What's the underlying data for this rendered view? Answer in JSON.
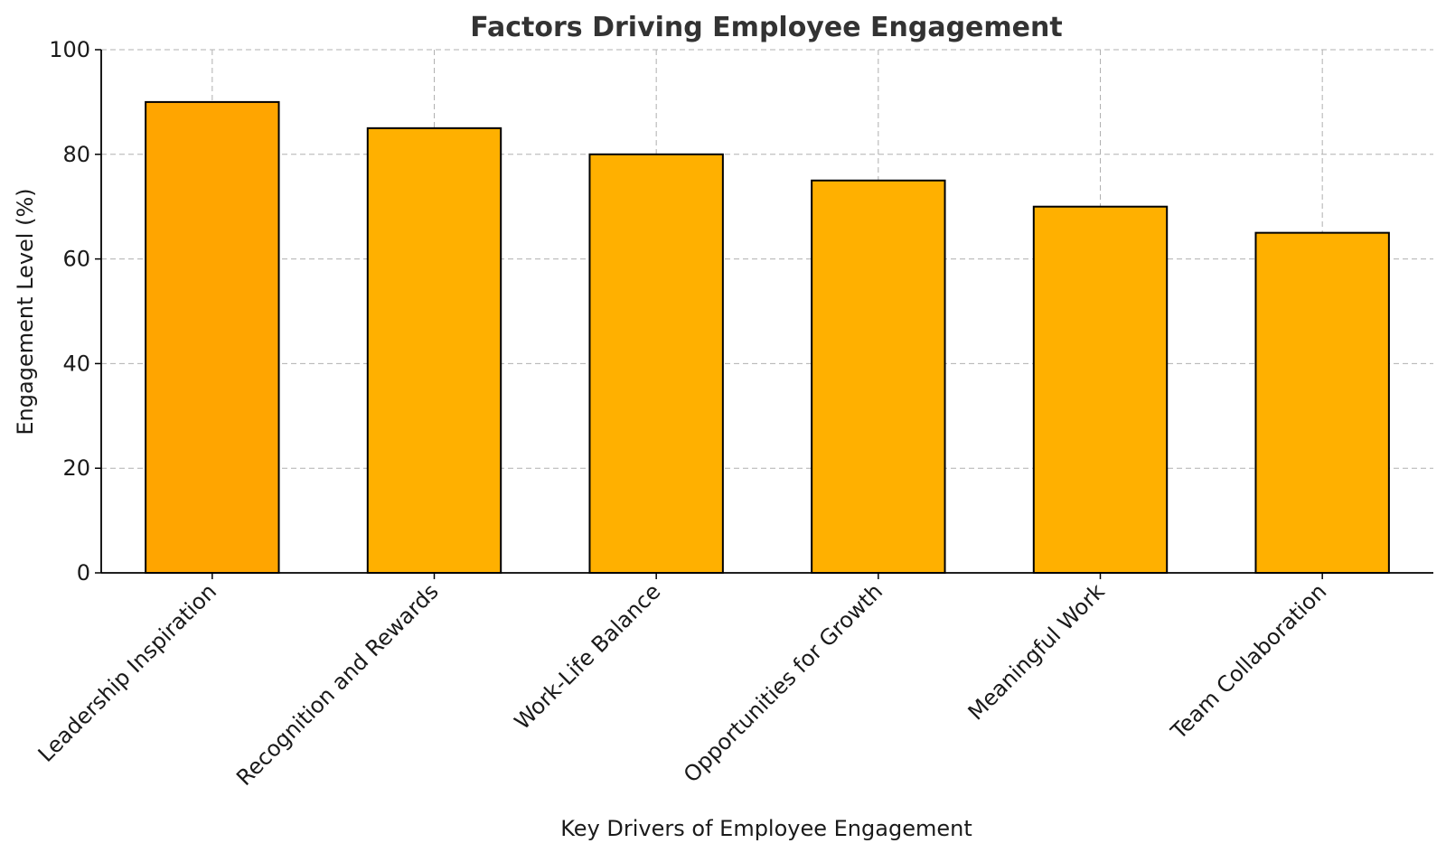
{
  "chart_data": {
    "type": "bar",
    "title": "Factors Driving Employee Engagement",
    "xlabel": "Key Drivers of Employee Engagement",
    "ylabel": "Engagement Level (%)",
    "categories": [
      "Leadership Inspiration",
      "Recognition and Rewards",
      "Work-Life Balance",
      "Opportunities for Growth",
      "Meaningful Work",
      "Team Collaboration"
    ],
    "values": [
      90,
      85,
      80,
      75,
      70,
      65
    ],
    "ylim": [
      0,
      100
    ],
    "yticks": [
      0,
      20,
      40,
      60,
      80,
      100
    ],
    "grid": true,
    "bar_colors": [
      "#FFA500",
      "#FFB000",
      "#FFB000",
      "#FFB000",
      "#FFB000",
      "#FFB000"
    ],
    "edge_color": "#000000"
  }
}
